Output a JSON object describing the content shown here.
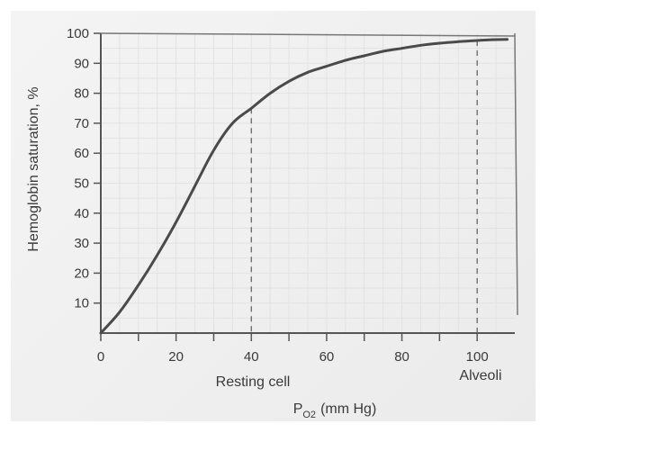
{
  "chart_data": {
    "type": "line",
    "title": "",
    "xlabel_main": "P",
    "xlabel_sub": "O2",
    "xlabel_unit": "(mm Hg)",
    "ylabel": "Hemoglobin saturation, %",
    "xlim": [
      0,
      110
    ],
    "ylim": [
      0,
      100
    ],
    "xticks": [
      0,
      20,
      40,
      60,
      80,
      100
    ],
    "xticks_minor": [
      10,
      30,
      50,
      70,
      90
    ],
    "yticks": [
      10,
      20,
      30,
      40,
      50,
      60,
      70,
      80,
      90,
      100
    ],
    "grid": true,
    "curve_color": "#4a4a4a",
    "series": [
      {
        "x": [
          0,
          5,
          10,
          15,
          20,
          25,
          30,
          35,
          40,
          45,
          50,
          55,
          60,
          65,
          70,
          75,
          80,
          85,
          90,
          95,
          100,
          105,
          108
        ],
        "values": [
          0,
          7,
          16,
          26,
          37,
          49,
          61,
          70,
          75,
          80,
          84,
          87,
          89,
          91,
          92.5,
          94,
          95,
          96,
          96.7,
          97.2,
          97.6,
          97.9,
          98
        ]
      }
    ],
    "annotations": [
      {
        "label": "Resting cell",
        "x": 40,
        "y": 75
      },
      {
        "label": "Alveoli",
        "x": 100,
        "y": 97.6
      }
    ]
  }
}
